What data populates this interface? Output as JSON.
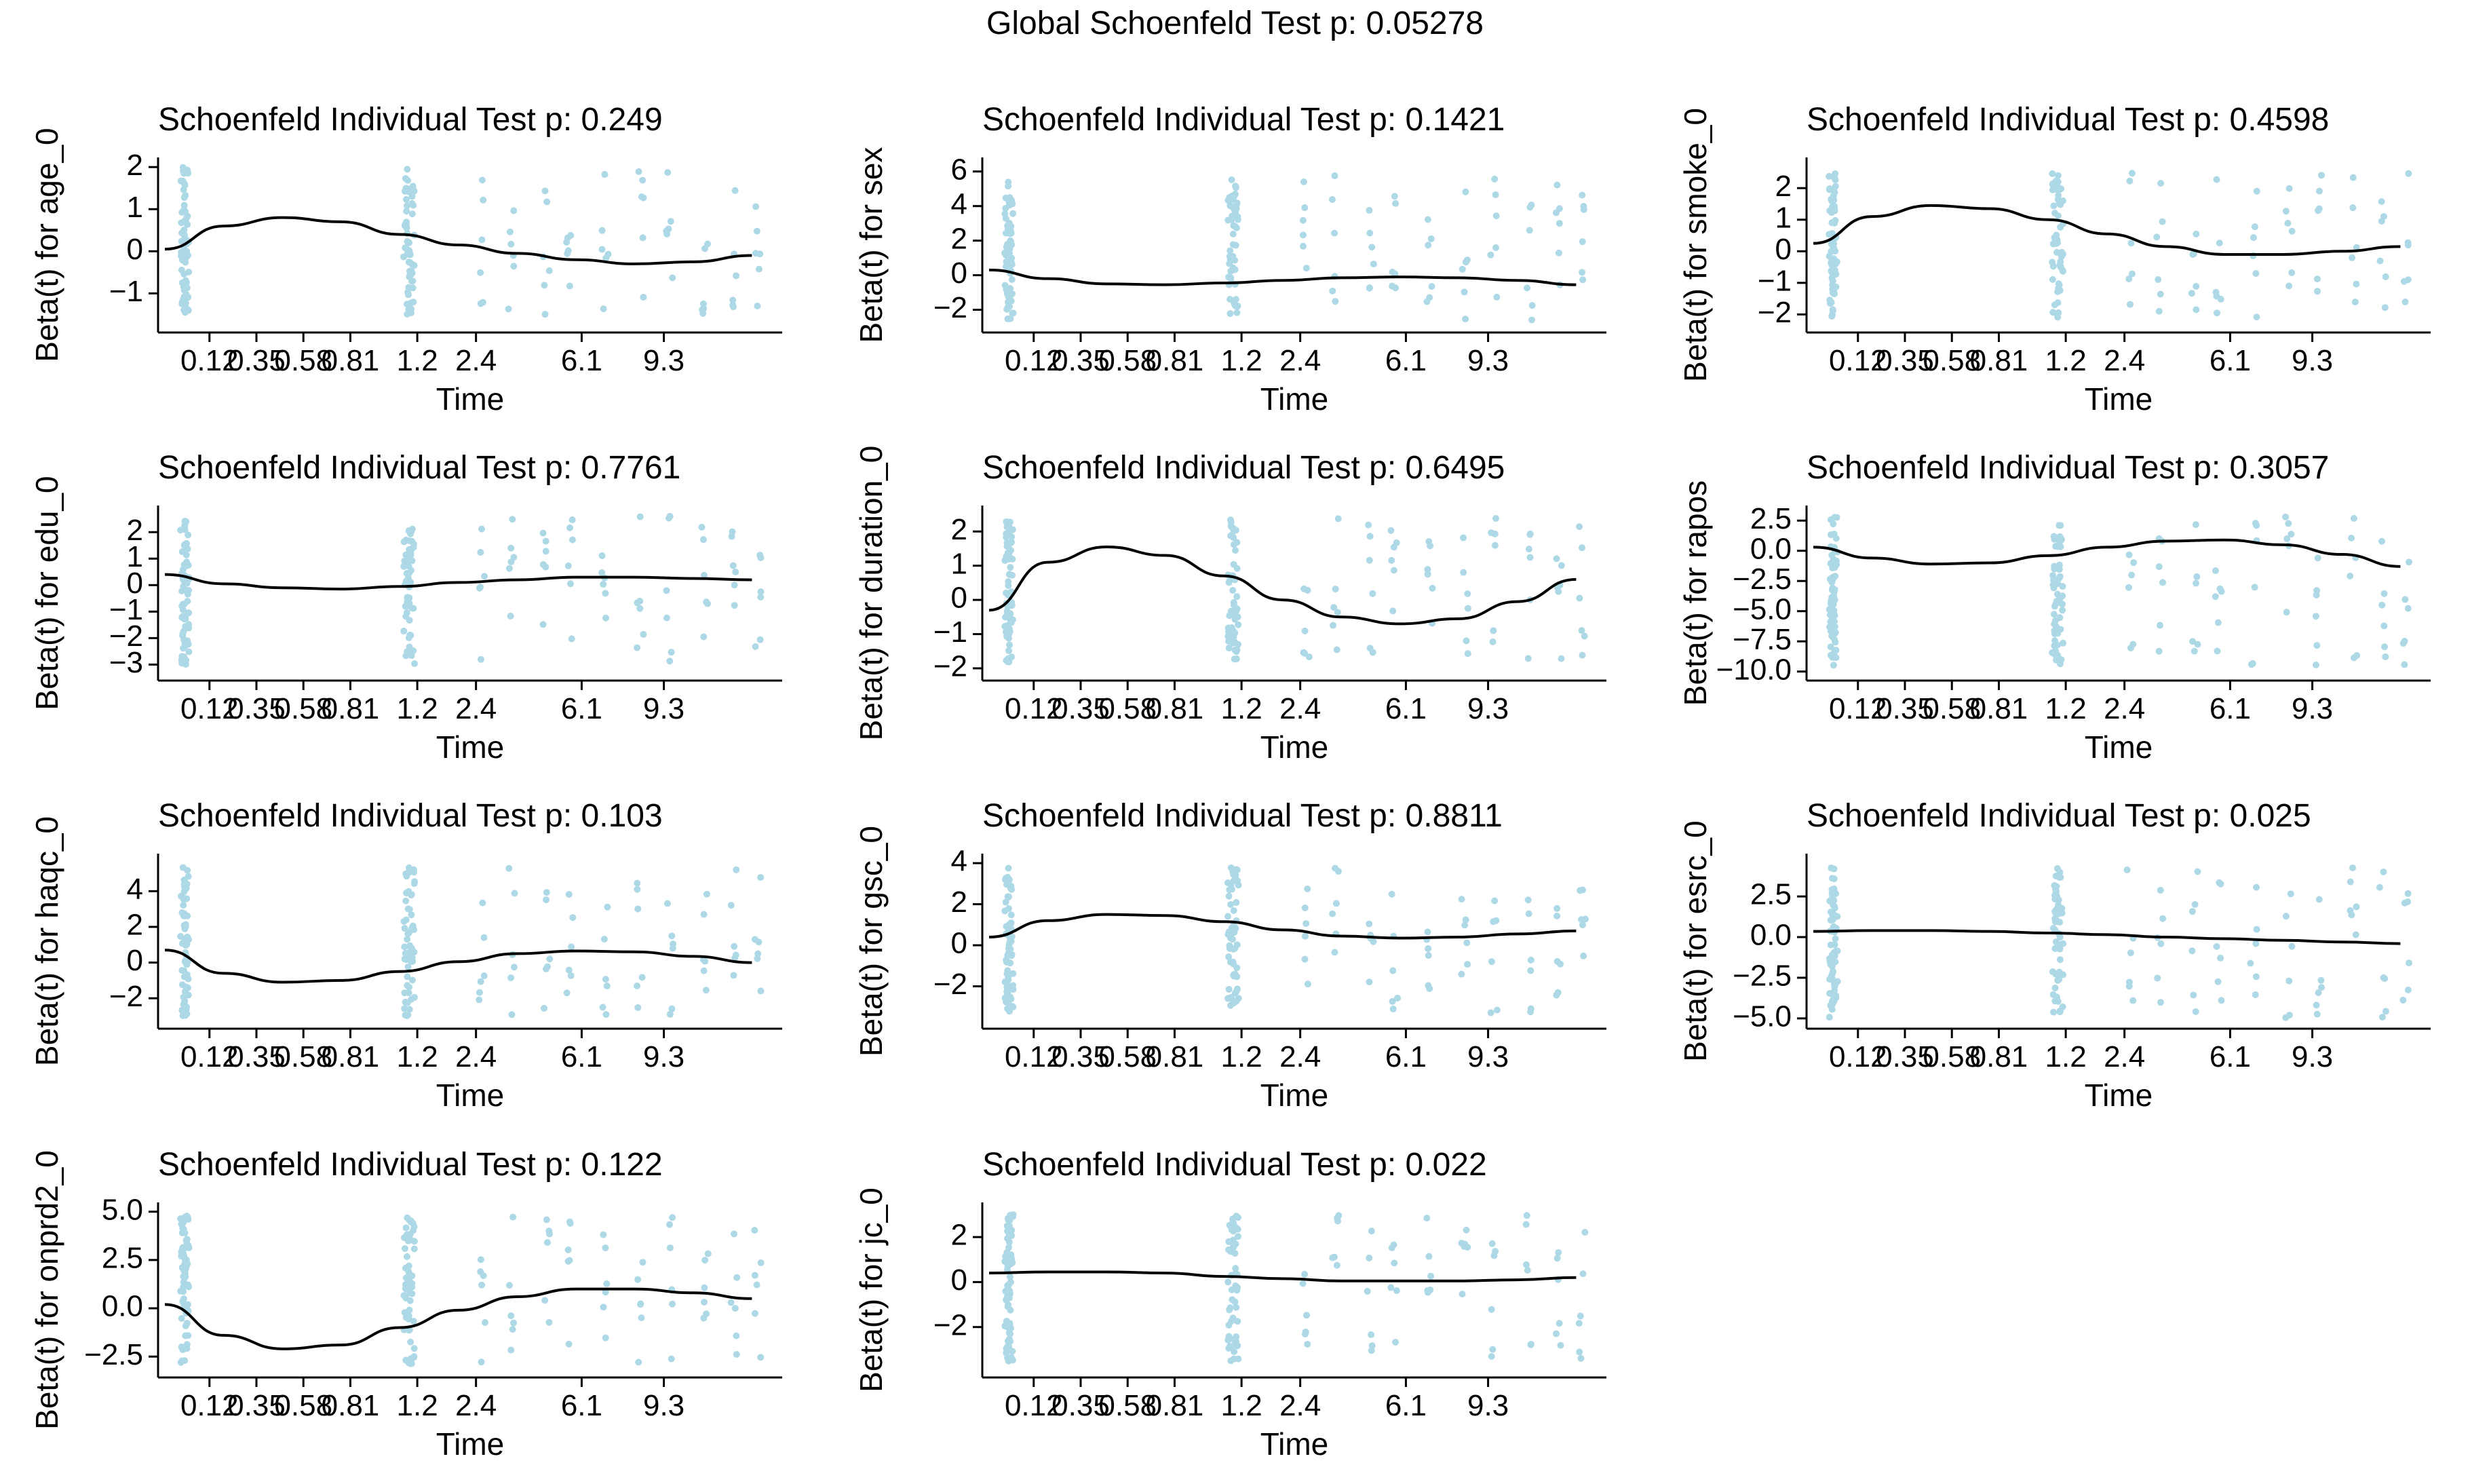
{
  "global_title": "Global Schoenfeld Test p: 0.05278",
  "colors": {
    "points": "#add8e6",
    "curve": "#000000",
    "axis": "#000000"
  },
  "chart_data": {
    "type": "scatter",
    "x_ticks": [
      "0.12",
      "0.35",
      "0.58",
      "0.81",
      "1.2",
      "2.4",
      "6.1",
      "9.3"
    ],
    "xlabel": "Time",
    "x_scale": "transformed (km)",
    "panels": [
      {
        "title": "Schoenfeld Individual Test p: 0.249",
        "ylabel": "Beta(t) for age_0",
        "ylim": [
          -1.8,
          2.1
        ],
        "yticks": [
          -1,
          0,
          1,
          2
        ],
        "ytick_labels": [
          "−1",
          "0",
          "1",
          "2"
        ],
        "curve": [
          [
            0,
            0.05
          ],
          [
            0.5,
            0.6
          ],
          [
            1.0,
            0.8
          ],
          [
            1.5,
            0.7
          ],
          [
            2.0,
            0.4
          ],
          [
            2.5,
            0.15
          ],
          [
            3.0,
            -0.05
          ],
          [
            3.5,
            -0.2
          ],
          [
            4.0,
            -0.3
          ],
          [
            4.5,
            -0.25
          ],
          [
            5.0,
            -0.1
          ]
        ],
        "point_range": [
          -1.5,
          2.0
        ]
      },
      {
        "title": "Schoenfeld Individual Test p: 0.1421",
        "ylabel": "Beta(t) for sex",
        "ylim": [
          -3.0,
          6.5
        ],
        "yticks": [
          -2,
          0,
          2,
          4,
          6
        ],
        "ytick_labels": [
          "−2",
          "0",
          "2",
          "4",
          "6"
        ],
        "curve": [
          [
            0,
            0.3
          ],
          [
            0.5,
            -0.2
          ],
          [
            1.0,
            -0.5
          ],
          [
            1.5,
            -0.55
          ],
          [
            2.0,
            -0.45
          ],
          [
            2.5,
            -0.3
          ],
          [
            3.0,
            -0.15
          ],
          [
            3.5,
            -0.1
          ],
          [
            4.0,
            -0.15
          ],
          [
            4.5,
            -0.3
          ],
          [
            5.0,
            -0.55
          ]
        ],
        "point_range": [
          -2.6,
          5.8
        ]
      },
      {
        "title": "Schoenfeld Individual Test p: 0.4598",
        "ylabel": "Beta(t) for smoke_0",
        "ylim": [
          -2.4,
          2.8
        ],
        "yticks": [
          -2,
          -1,
          0,
          1,
          2
        ],
        "ytick_labels": [
          "−2",
          "−1",
          "0",
          "1",
          "2"
        ],
        "curve": [
          [
            0,
            0.25
          ],
          [
            0.5,
            1.1
          ],
          [
            1.0,
            1.45
          ],
          [
            1.5,
            1.35
          ],
          [
            2.0,
            1.0
          ],
          [
            2.5,
            0.55
          ],
          [
            3.0,
            0.15
          ],
          [
            3.5,
            -0.1
          ],
          [
            4.0,
            -0.1
          ],
          [
            4.5,
            0.0
          ],
          [
            5.0,
            0.15
          ]
        ],
        "point_range": [
          -2.1,
          2.5
        ]
      },
      {
        "title": "Schoenfeld Individual Test p: 0.7761",
        "ylabel": "Beta(t) for edu_0",
        "ylim": [
          -3.4,
          2.8
        ],
        "yticks": [
          -3,
          -2,
          -1,
          0,
          1,
          2
        ],
        "ytick_labels": [
          "−3",
          "−2",
          "−1",
          "0",
          "1",
          "2"
        ],
        "curve": [
          [
            0,
            0.4
          ],
          [
            0.5,
            0.05
          ],
          [
            1.0,
            -0.1
          ],
          [
            1.5,
            -0.15
          ],
          [
            2.0,
            -0.05
          ],
          [
            2.5,
            0.1
          ],
          [
            3.0,
            0.2
          ],
          [
            3.5,
            0.3
          ],
          [
            4.0,
            0.3
          ],
          [
            4.5,
            0.25
          ],
          [
            5.0,
            0.2
          ]
        ],
        "point_range": [
          -3.0,
          2.6
        ]
      },
      {
        "title": "Schoenfeld Individual Test p: 0.6495",
        "ylabel": "Beta(t) for duration_0",
        "ylim": [
          -2.2,
          2.6
        ],
        "yticks": [
          -2,
          -1,
          0,
          1,
          2
        ],
        "ytick_labels": [
          "−2",
          "−1",
          "0",
          "1",
          "2"
        ],
        "curve": [
          [
            0,
            -0.3
          ],
          [
            0.5,
            1.1
          ],
          [
            1.0,
            1.55
          ],
          [
            1.5,
            1.3
          ],
          [
            2.0,
            0.7
          ],
          [
            2.5,
            0.0
          ],
          [
            3.0,
            -0.5
          ],
          [
            3.5,
            -0.7
          ],
          [
            4.0,
            -0.55
          ],
          [
            4.5,
            -0.05
          ],
          [
            5.0,
            0.6
          ]
        ],
        "point_range": [
          -2.0,
          2.4
        ]
      },
      {
        "title": "Schoenfeld Individual Test p: 0.3057",
        "ylabel": "Beta(t) for rapos",
        "ylim": [
          -10.3,
          3.3
        ],
        "yticks": [
          -10,
          -7.5,
          -5,
          -2.5,
          0,
          2.5
        ],
        "ytick_labels": [
          "−10.0",
          "−7.5",
          "−5.0",
          "−2.5",
          "0.0",
          "2.5"
        ],
        "curve": [
          [
            0,
            0.3
          ],
          [
            0.5,
            -0.6
          ],
          [
            1.0,
            -1.1
          ],
          [
            1.5,
            -1.0
          ],
          [
            2.0,
            -0.4
          ],
          [
            2.5,
            0.3
          ],
          [
            3.0,
            0.8
          ],
          [
            3.5,
            0.9
          ],
          [
            4.0,
            0.5
          ],
          [
            4.5,
            -0.3
          ],
          [
            5.0,
            -1.3
          ]
        ],
        "point_range": [
          -9.5,
          2.9
        ]
      },
      {
        "title": "Schoenfeld Individual Test p: 0.103",
        "ylabel": "Beta(t) for haqc_0",
        "ylim": [
          -3.4,
          5.8
        ],
        "yticks": [
          -2,
          0,
          2,
          4
        ],
        "ytick_labels": [
          "−2",
          "0",
          "2",
          "4"
        ],
        "curve": [
          [
            0,
            0.7
          ],
          [
            0.5,
            -0.6
          ],
          [
            1.0,
            -1.1
          ],
          [
            1.5,
            -1.0
          ],
          [
            2.0,
            -0.5
          ],
          [
            2.5,
            0.05
          ],
          [
            3.0,
            0.5
          ],
          [
            3.5,
            0.65
          ],
          [
            4.0,
            0.6
          ],
          [
            4.5,
            0.35
          ],
          [
            5.0,
            0.0
          ]
        ],
        "point_range": [
          -3.0,
          5.4
        ]
      },
      {
        "title": "Schoenfeld Individual Test p: 0.8811",
        "ylabel": "Beta(t) for gsc_0",
        "ylim": [
          -3.8,
          4.2
        ],
        "yticks": [
          -2,
          0,
          2,
          4
        ],
        "ytick_labels": [
          "−2",
          "0",
          "2",
          "4"
        ],
        "curve": [
          [
            0,
            0.4
          ],
          [
            0.5,
            1.2
          ],
          [
            1.0,
            1.5
          ],
          [
            1.5,
            1.45
          ],
          [
            2.0,
            1.15
          ],
          [
            2.5,
            0.75
          ],
          [
            3.0,
            0.45
          ],
          [
            3.5,
            0.35
          ],
          [
            4.0,
            0.4
          ],
          [
            4.5,
            0.55
          ],
          [
            5.0,
            0.7
          ]
        ],
        "point_range": [
          -3.3,
          3.8
        ]
      },
      {
        "title": "Schoenfeld Individual Test p: 0.025",
        "ylabel": "Beta(t) for esrc_0",
        "ylim": [
          -5.3,
          4.8
        ],
        "yticks": [
          -5,
          -2.5,
          0,
          2.5
        ],
        "ytick_labels": [
          "−5.0",
          "−2.5",
          "0.0",
          "2.5"
        ],
        "curve": [
          [
            0,
            0.35
          ],
          [
            0.5,
            0.4
          ],
          [
            1.0,
            0.4
          ],
          [
            1.5,
            0.35
          ],
          [
            2.0,
            0.25
          ],
          [
            2.5,
            0.15
          ],
          [
            3.0,
            0.0
          ],
          [
            3.5,
            -0.1
          ],
          [
            4.0,
            -0.2
          ],
          [
            4.5,
            -0.3
          ],
          [
            5.0,
            -0.4
          ]
        ],
        "point_range": [
          -5.0,
          4.3
        ]
      },
      {
        "title": "Schoenfeld Individual Test p: 0.122",
        "ylabel": "Beta(t) for onprd2_0",
        "ylim": [
          -3.3,
          5.2
        ],
        "yticks": [
          -2.5,
          0,
          2.5,
          5
        ],
        "ytick_labels": [
          "−2.5",
          "0.0",
          "2.5",
          "5.0"
        ],
        "curve": [
          [
            0,
            0.2
          ],
          [
            0.5,
            -1.4
          ],
          [
            1.0,
            -2.1
          ],
          [
            1.5,
            -1.9
          ],
          [
            2.0,
            -1.0
          ],
          [
            2.5,
            -0.1
          ],
          [
            3.0,
            0.6
          ],
          [
            3.5,
            1.0
          ],
          [
            4.0,
            1.0
          ],
          [
            4.5,
            0.8
          ],
          [
            5.0,
            0.5
          ]
        ],
        "point_range": [
          -2.9,
          4.8
        ]
      },
      {
        "title": "Schoenfeld Individual Test p: 0.022",
        "ylabel": "Beta(t) for jc_0",
        "ylim": [
          -4.0,
          3.3
        ],
        "yticks": [
          -2,
          0,
          2
        ],
        "ytick_labels": [
          "−2",
          "0",
          "2"
        ],
        "curve": [
          [
            0,
            0.4
          ],
          [
            0.5,
            0.45
          ],
          [
            1.0,
            0.45
          ],
          [
            1.5,
            0.4
          ],
          [
            2.0,
            0.25
          ],
          [
            2.5,
            0.15
          ],
          [
            3.0,
            0.05
          ],
          [
            3.5,
            0.05
          ],
          [
            4.0,
            0.05
          ],
          [
            4.5,
            0.1
          ],
          [
            5.0,
            0.2
          ]
        ],
        "point_range": [
          -3.6,
          3.0
        ]
      }
    ]
  }
}
